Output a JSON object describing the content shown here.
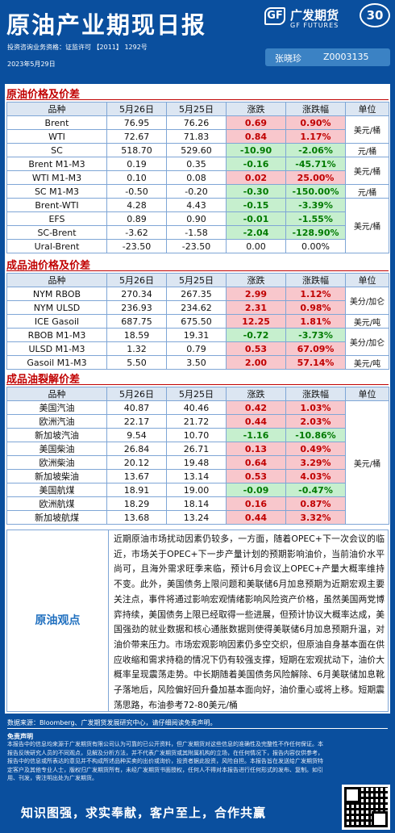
{
  "header": {
    "title": "原油产业期现日报",
    "logo_mark": "GF",
    "logo_cn": "广发期货",
    "logo_en": "GF FUTURES",
    "badge": "30",
    "license": "投资咨询业务资格：证监许可 【2011】 1292号",
    "date": "2023年5月29日",
    "author_name": "张晓珍",
    "author_id": "Z0003135"
  },
  "columns": [
    "品种",
    "5月26日",
    "5月25日",
    "涨跌",
    "涨跌幅",
    "单位"
  ],
  "sections": [
    {
      "title": "原油价格及价差",
      "rows": [
        {
          "name": "Brent",
          "d1": "76.95",
          "d2": "76.26",
          "chg": "0.69",
          "pct": "0.90%",
          "dir": "up"
        },
        {
          "name": "WTI",
          "d1": "72.67",
          "d2": "71.83",
          "chg": "0.84",
          "pct": "1.17%",
          "dir": "up"
        },
        {
          "name": "SC",
          "d1": "518.70",
          "d2": "529.60",
          "chg": "-10.90",
          "pct": "-2.06%",
          "dir": "dn"
        },
        {
          "name": "Brent  M1-M3",
          "d1": "0.19",
          "d2": "0.35",
          "chg": "-0.16",
          "pct": "-45.71%",
          "dir": "dn"
        },
        {
          "name": "WTI  M1-M3",
          "d1": "0.10",
          "d2": "0.08",
          "chg": "0.02",
          "pct": "25.00%",
          "dir": "up"
        },
        {
          "name": "SC  M1-M3",
          "d1": "-0.50",
          "d2": "-0.20",
          "chg": "-0.30",
          "pct": "-150.00%",
          "dir": "dn"
        },
        {
          "name": "Brent-WTI",
          "d1": "4.28",
          "d2": "4.43",
          "chg": "-0.15",
          "pct": "-3.39%",
          "dir": "dn"
        },
        {
          "name": "EFS",
          "d1": "0.89",
          "d2": "0.90",
          "chg": "-0.01",
          "pct": "-1.55%",
          "dir": "dn"
        },
        {
          "name": "SC-Brent",
          "d1": "-3.62",
          "d2": "-1.58",
          "chg": "-2.04",
          "pct": "-128.90%",
          "dir": "dn"
        },
        {
          "name": "Ural-Brent",
          "d1": "-23.50",
          "d2": "-23.50",
          "chg": "0.00",
          "pct": "0.00%",
          "dir": "flat"
        }
      ],
      "units": [
        "美元/桶",
        "元/桶",
        "美元/桶",
        "元/桶",
        "美元/桶"
      ]
    },
    {
      "title": "成品油价格及价差",
      "rows": [
        {
          "name": "NYM RBOB",
          "d1": "270.34",
          "d2": "267.35",
          "chg": "2.99",
          "pct": "1.12%",
          "dir": "up"
        },
        {
          "name": "NYM ULSD",
          "d1": "236.93",
          "d2": "234.62",
          "chg": "2.31",
          "pct": "0.98%",
          "dir": "up"
        },
        {
          "name": "ICE Gasoil",
          "d1": "687.75",
          "d2": "675.50",
          "chg": "12.25",
          "pct": "1.81%",
          "dir": "up"
        },
        {
          "name": "RBOB  M1-M3",
          "d1": "18.59",
          "d2": "19.31",
          "chg": "-0.72",
          "pct": "-3.73%",
          "dir": "dn"
        },
        {
          "name": "ULSD  M1-M3",
          "d1": "1.32",
          "d2": "0.79",
          "chg": "0.53",
          "pct": "67.09%",
          "dir": "up"
        },
        {
          "name": "Gasoil  M1-M3",
          "d1": "5.50",
          "d2": "3.50",
          "chg": "2.00",
          "pct": "57.14%",
          "dir": "up"
        }
      ],
      "units": [
        "美分/加仑",
        "美元/吨",
        "美分/加仑",
        "美元/吨"
      ]
    },
    {
      "title": "成品油裂解价差",
      "rows": [
        {
          "name": "美国汽油",
          "d1": "40.87",
          "d2": "40.46",
          "chg": "0.42",
          "pct": "1.03%",
          "dir": "up"
        },
        {
          "name": "欧洲汽油",
          "d1": "22.17",
          "d2": "21.72",
          "chg": "0.44",
          "pct": "2.03%",
          "dir": "up"
        },
        {
          "name": "新加坡汽油",
          "d1": "9.54",
          "d2": "10.70",
          "chg": "-1.16",
          "pct": "-10.86%",
          "dir": "dn"
        },
        {
          "name": "美国柴油",
          "d1": "26.84",
          "d2": "26.71",
          "chg": "0.13",
          "pct": "0.49%",
          "dir": "up"
        },
        {
          "name": "欧洲柴油",
          "d1": "20.12",
          "d2": "19.48",
          "chg": "0.64",
          "pct": "3.29%",
          "dir": "up"
        },
        {
          "name": "新加坡柴油",
          "d1": "13.67",
          "d2": "13.14",
          "chg": "0.53",
          "pct": "4.03%",
          "dir": "up"
        },
        {
          "name": "美国航煤",
          "d1": "18.91",
          "d2": "19.00",
          "chg": "-0.09",
          "pct": "-0.47%",
          "dir": "dn"
        },
        {
          "name": "欧洲航煤",
          "d1": "18.29",
          "d2": "18.14",
          "chg": "0.16",
          "pct": "0.87%",
          "dir": "up"
        },
        {
          "name": "新加坡航煤",
          "d1": "13.68",
          "d2": "13.24",
          "chg": "0.44",
          "pct": "3.32%",
          "dir": "up"
        }
      ],
      "units": [
        "美元/桶"
      ]
    }
  ],
  "view": {
    "label": "原油观点",
    "text": "近期原油市场扰动因素仍较多，一方面，随着OPEC+下一次会议的临近，市场关于OPEC+下一步产量计划的预期影响油价，当前油价水平尚可，且海外需求旺季来临，预计6月会议上OPEC+产量大概率维持不变。此外，美国债务上限问题和美联储6月加息预期为近期宏观主要关注点，事件将通过影响宏观情绪影响风险资产价格，虽然美国两党博弈持续，美国债务上限已经取得一些进展，但预计协议大概率达成，美国强劲的就业数据和核心通胀数据则使得美联储6月加息预期升温，对油价带来压力。市场宏观影响因素仍多空交织，但原油自身基本面在供应收缩和需求持稳的情况下仍有较强支撑，短期在宏观扰动下，油价大概率呈现震荡走势。中长期随着美国债务风险解除、6月美联储加息靴子落地后，风险偏好回升叠加基本面向好，油价重心或将上移。短期震荡思路，布油参考72-80美元/桶"
  },
  "footer": {
    "source": "数据来源：Bloomberg、广发期货发展研究中心，请仔细阅读免责声明。",
    "disclaimer_title": "免责声明",
    "disclaimer": "本报告中的信息均来源于广发期货有限公司认为可靠的已公开资料，但广发期货对这些信息的准确性及完整性不作任何保证。本报告反映研究人员的不同观点，见解及分析方法，并不代表广发期货或其附属机构的立场，在任何情况下，报告内容仅供参考，报告中的信息或所表达的意见并不构成所述品种买卖的出价或询价，投资者据此投资，风险自担。本报告旨在发送给广发期货特定客户及其他专业人士，版权归广发期货所有，未经广发期货书面授权，任何人不得对本报告进行任何形式的发布、复制。如引用、刊发，需注明出处为广发期货。",
    "slogan": "知识图强，求实奉献，客户至上，合作共赢"
  },
  "colors": {
    "brand_blue": "#0a4f9e",
    "section_red": "#c00000",
    "up_bg": "#f8c7cc",
    "down_bg": "#c6efce"
  }
}
